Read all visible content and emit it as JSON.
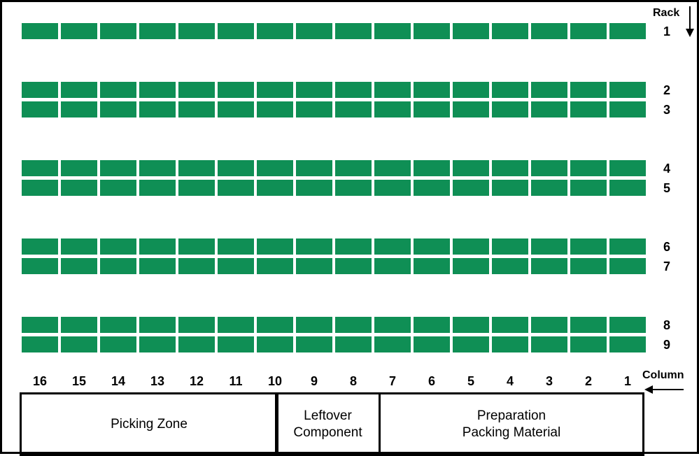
{
  "colors": {
    "slot": "#0f8f55",
    "border": "#000000"
  },
  "rack_axis": {
    "label": "Rack",
    "icon": "arrow-down-icon"
  },
  "column_axis": {
    "label": "Column",
    "icon": "arrow-left-icon"
  },
  "racks": [
    "1",
    "2",
    "3",
    "4",
    "5",
    "6",
    "7",
    "8",
    "9"
  ],
  "columns": [
    "16",
    "15",
    "14",
    "13",
    "12",
    "11",
    "10",
    "9",
    "8",
    "7",
    "6",
    "5",
    "4",
    "3",
    "2",
    "1"
  ],
  "zones": {
    "picking": {
      "lines": [
        "Picking Zone"
      ]
    },
    "leftover": {
      "lines": [
        "Leftover",
        "Component"
      ]
    },
    "preparation": {
      "lines": [
        "Preparation",
        "Packing Material"
      ]
    }
  }
}
